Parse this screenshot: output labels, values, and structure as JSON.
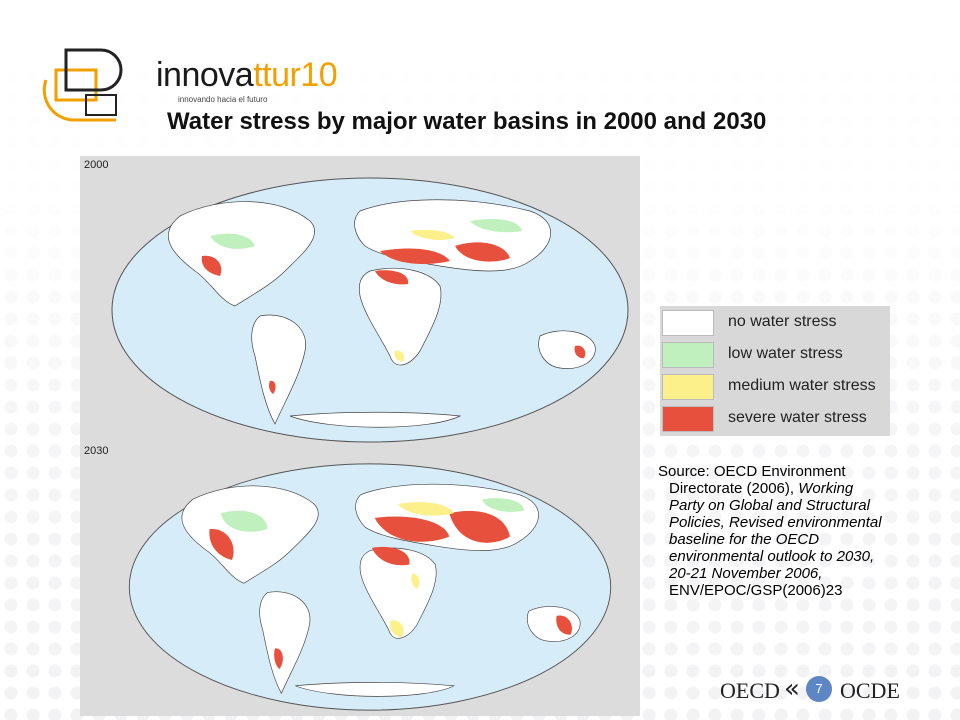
{
  "logo": {
    "brand_part1": "innova",
    "brand_part2": "ttur10",
    "tagline": "innovando hacia el futuro"
  },
  "title": "Water stress by major water basins in 2000 and 2030",
  "maps": [
    {
      "year_label": "2000"
    },
    {
      "year_label": "2030"
    }
  ],
  "colors": {
    "ocean": "#d6ecf8",
    "no_stress": "#ffffff",
    "low_stress": "#bff0be",
    "medium_stress": "#fbf08a",
    "severe_stress": "#e8503e"
  },
  "legend": [
    {
      "label": "no water stress",
      "color": "#ffffff"
    },
    {
      "label": "low water stress",
      "color": "#bff0be"
    },
    {
      "label": "medium water stress",
      "color": "#fbf08a"
    },
    {
      "label": "severe water stress",
      "color": "#e8503e"
    }
  ],
  "source": {
    "line1": "Source: OECD Environment",
    "line2": "Directorate (2006), ",
    "line2_italic": "Working",
    "line3": "Party on Global and Structural",
    "line4": "Policies, Revised environmental",
    "line5": "baseline for the OECD",
    "line6": "environmental outlook to 2030,",
    "line7": "20-21 November 2006,",
    "line8": "ENV/EPOC/GSP(2006)23"
  },
  "footer": {
    "left_text": "OECD",
    "right_text": "OCDE",
    "page_number": "7"
  }
}
